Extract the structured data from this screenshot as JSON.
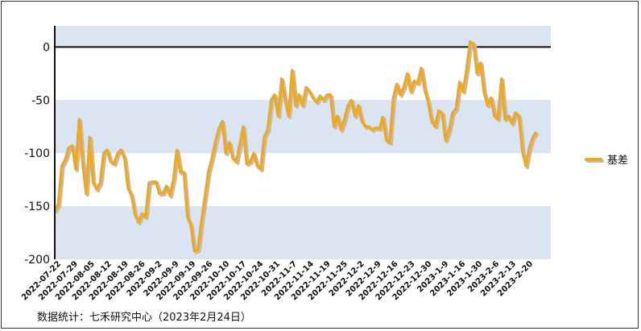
{
  "chart_data": {
    "type": "line",
    "title": "",
    "xlabel": "",
    "ylabel": "",
    "ylim": [
      -200,
      20
    ],
    "yticks": [
      0,
      -50,
      -100,
      -150,
      -200
    ],
    "grid": false,
    "band_color": "#dbe5f1",
    "legend_position": "right",
    "x_tick_labels": [
      "2022-07-22",
      "2022-07-29",
      "2022-08-05",
      "2022-08-12",
      "2022-08-19",
      "2022-08-26",
      "2022-09-2",
      "2022-09-9",
      "2022-09-19",
      "2022-09-26",
      "2022-10-10",
      "2022-10-17",
      "2022-10-24",
      "2022-10-31",
      "2022-11-7",
      "2022-11-14",
      "2022-11-19",
      "2022-11-25",
      "2022-12-2",
      "2022-12-9",
      "2022-12-16",
      "2022-12-23",
      "2022-12-30",
      "2023-1-9",
      "2023-1-16",
      "2023-1-30",
      "2023-2-6",
      "2023-2-13",
      "2023-2-20"
    ],
    "series": [
      {
        "name": "基差",
        "color": "#f0a81e",
        "values": [
          -155,
          -148,
          -112,
          -106,
          -95,
          -93,
          -115,
          -68,
          -110,
          -138,
          -85,
          -128,
          -134,
          -128,
          -100,
          -97,
          -108,
          -110,
          -100,
          -97,
          -105,
          -133,
          -140,
          -158,
          -165,
          -157,
          -160,
          -128,
          -127,
          -127,
          -138,
          -138,
          -131,
          -140,
          -125,
          -97,
          -118,
          -118,
          -160,
          -168,
          -192,
          -191,
          -165,
          -142,
          -118,
          -105,
          -90,
          -77,
          -70,
          -100,
          -90,
          -105,
          -108,
          -92,
          -75,
          -110,
          -108,
          -100,
          -112,
          -115,
          -85,
          -78,
          -50,
          -45,
          -65,
          -30,
          -50,
          -65,
          -22,
          -55,
          -45,
          -55,
          -38,
          -42,
          -48,
          -52,
          -46,
          -50,
          -45,
          -45,
          -75,
          -65,
          -78,
          -68,
          -55,
          -50,
          -65,
          -55,
          -70,
          -75,
          -75,
          -78,
          -76,
          -77,
          -66,
          -88,
          -90,
          -48,
          -35,
          -45,
          -38,
          -25,
          -42,
          -32,
          -34,
          -20,
          -40,
          -52,
          -70,
          -75,
          -60,
          -62,
          -88,
          -78,
          -62,
          -58,
          -33,
          -42,
          -22,
          5,
          3,
          -25,
          -15,
          -42,
          -55,
          -48,
          -65,
          -68,
          -30,
          -68,
          -65,
          -72,
          -62,
          -65,
          -98,
          -112,
          -95,
          -85,
          -80
        ]
      }
    ]
  },
  "legend": {
    "label": "基差"
  },
  "source_note": "数据统计：七禾研究中心（2023年2月24日）"
}
